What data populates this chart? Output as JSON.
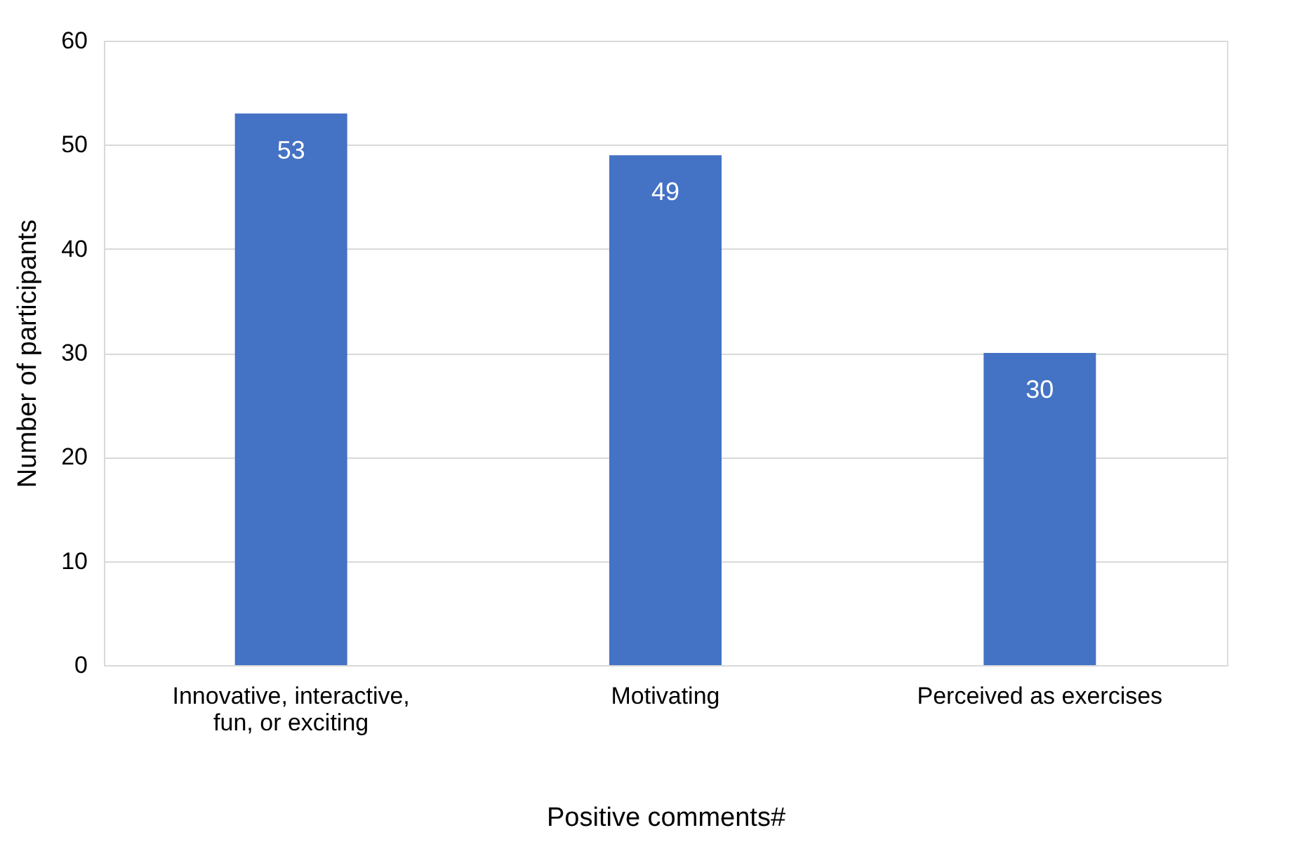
{
  "chart_data": {
    "type": "bar",
    "categories": [
      "Innovative, interactive, fun, or exciting",
      "Motivating",
      "Perceived as exercises"
    ],
    "values": [
      53,
      49,
      30
    ],
    "color": "#4472c4",
    "xlabel": "Positive comments#",
    "ylabel": "Number of participants",
    "ylim": [
      0,
      60
    ],
    "yticks": [
      0,
      10,
      20,
      30,
      40,
      50,
      60
    ],
    "grid": "y",
    "data_labels": true
  }
}
